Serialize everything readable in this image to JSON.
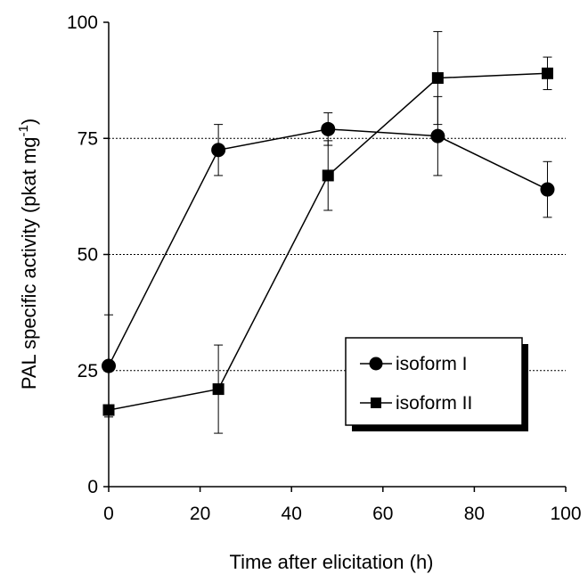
{
  "chart_data": {
    "type": "line",
    "xlabel": "Time after elicitation (h)",
    "ylabel": "PAL specific activity (pkat mg",
    "ylabel_superscript": "-1",
    "ylabel_close": ")",
    "xlim": [
      0,
      100
    ],
    "ylim": [
      0,
      100
    ],
    "xticks": [
      0,
      20,
      40,
      60,
      80,
      100
    ],
    "yticks": [
      0,
      25,
      50,
      75,
      100
    ],
    "grid": "horizontal dashed at 25, 50, 75",
    "legend_position": "lower-right",
    "series": [
      {
        "name": "isoform I",
        "marker": "circle",
        "x": [
          0,
          24,
          48,
          72,
          96
        ],
        "y": [
          26,
          72.5,
          77,
          75.5,
          64
        ],
        "error": [
          11,
          5.5,
          3.5,
          8.5,
          6
        ]
      },
      {
        "name": "isoform II",
        "marker": "square",
        "x": [
          0,
          24,
          48,
          72,
          96
        ],
        "y": [
          16.5,
          21,
          67,
          88,
          89
        ],
        "error": [
          0,
          9.5,
          7.5,
          10,
          3.5
        ]
      }
    ]
  }
}
